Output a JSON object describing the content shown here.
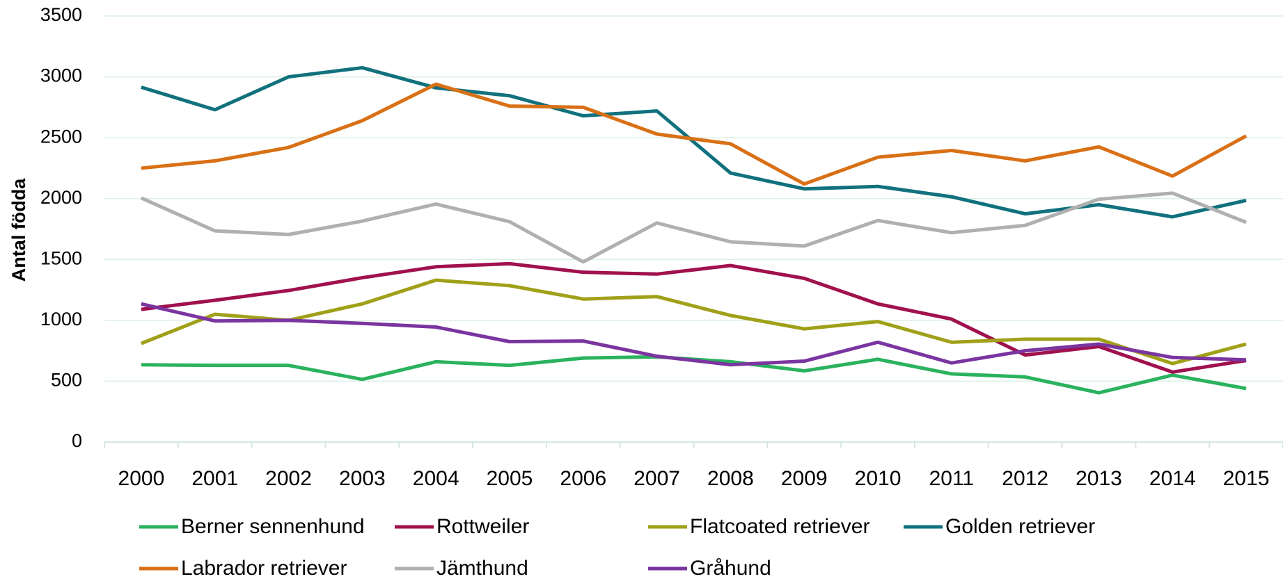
{
  "chart_data": {
    "type": "line",
    "y_label": "Antal födda",
    "categories": [
      "2000",
      "2001",
      "2002",
      "2003",
      "2004",
      "2005",
      "2006",
      "2007",
      "2008",
      "2009",
      "2010",
      "2011",
      "2012",
      "2013",
      "2014",
      "2015"
    ],
    "ylim": [
      0,
      3500
    ],
    "yticks": [
      0,
      500,
      1000,
      1500,
      2000,
      2500,
      3000,
      3500
    ],
    "grid": true,
    "legend": "bottom",
    "series": [
      {
        "name": "Berner sennenhund",
        "color": "#2ab25e",
        "values": [
          635,
          630,
          630,
          515,
          660,
          630,
          690,
          700,
          660,
          585,
          680,
          560,
          535,
          405,
          550,
          440
        ]
      },
      {
        "name": "Rottweiler",
        "color": "#a0114e",
        "values": [
          1090,
          1165,
          1245,
          1350,
          1440,
          1465,
          1395,
          1380,
          1450,
          1345,
          1135,
          1010,
          715,
          785,
          575,
          670
        ]
      },
      {
        "name": "Flatcoated retriever",
        "color": "#a0a019",
        "values": [
          810,
          1050,
          1000,
          1135,
          1330,
          1285,
          1175,
          1195,
          1040,
          930,
          990,
          820,
          845,
          845,
          645,
          805
        ]
      },
      {
        "name": "Golden retriever",
        "color": "#11717d",
        "values": [
          2915,
          2730,
          3000,
          3075,
          2910,
          2845,
          2680,
          2720,
          2210,
          2080,
          2100,
          2015,
          1875,
          1950,
          1850,
          1985
        ]
      },
      {
        "name": "Labrador retriever",
        "color": "#d97016",
        "values": [
          2250,
          2310,
          2420,
          2640,
          2940,
          2760,
          2750,
          2530,
          2450,
          2120,
          2340,
          2395,
          2310,
          2425,
          2185,
          2515
        ]
      },
      {
        "name": "Jämthund",
        "color": "#b0b0b0",
        "values": [
          2005,
          1735,
          1705,
          1815,
          1955,
          1810,
          1480,
          1800,
          1645,
          1610,
          1820,
          1720,
          1780,
          1995,
          2045,
          1805
        ]
      },
      {
        "name": "Gråhund",
        "color": "#7a35a0",
        "values": [
          1135,
          995,
          1000,
          975,
          945,
          825,
          830,
          705,
          635,
          665,
          820,
          650,
          750,
          805,
          695,
          675
        ]
      }
    ]
  }
}
